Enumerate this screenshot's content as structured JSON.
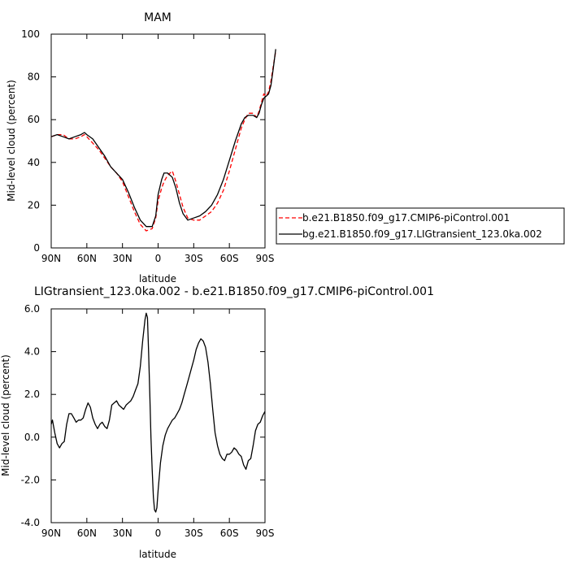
{
  "chart_data": [
    {
      "type": "line",
      "title": "MAM",
      "xlabel": "latitude",
      "ylabel": "Mid-level cloud (percent)",
      "xlim": [
        90,
        -90
      ],
      "ylim": [
        0,
        100
      ],
      "xticks": [
        90,
        60,
        30,
        0,
        -30,
        -60,
        -90
      ],
      "xtick_labels": [
        "90N",
        "60N",
        "30N",
        "0",
        "30S",
        "60S",
        "90S"
      ],
      "yticks": [
        0,
        20,
        40,
        60,
        80,
        100
      ],
      "ytick_labels": [
        "0",
        "20",
        "40",
        "60",
        "80",
        "100"
      ],
      "legend_position": "right",
      "series": [
        {
          "name": "b.e21.B1850.f09_g17.CMIP6-piControl.001",
          "color": "#ff0000",
          "dash": true,
          "points": [
            [
              90,
              52
            ],
            [
              85,
              53
            ],
            [
              80,
              53
            ],
            [
              75,
              51
            ],
            [
              70,
              51
            ],
            [
              65,
              52
            ],
            [
              62,
              53
            ],
            [
              60,
              52
            ],
            [
              55,
              49
            ],
            [
              50,
              46
            ],
            [
              45,
              42
            ],
            [
              40,
              38
            ],
            [
              35,
              35
            ],
            [
              30,
              31
            ],
            [
              25,
              24
            ],
            [
              20,
              17
            ],
            [
              15,
              11
            ],
            [
              10,
              8
            ],
            [
              5,
              9
            ],
            [
              2,
              14
            ],
            [
              0,
              22
            ],
            [
              -3,
              28
            ],
            [
              -5,
              31
            ],
            [
              -8,
              34
            ],
            [
              -12,
              36
            ],
            [
              -15,
              31
            ],
            [
              -18,
              25
            ],
            [
              -21,
              19
            ],
            [
              -25,
              14
            ],
            [
              -30,
              13
            ],
            [
              -35,
              13
            ],
            [
              -40,
              15
            ],
            [
              -45,
              17
            ],
            [
              -50,
              21
            ],
            [
              -55,
              27
            ],
            [
              -60,
              36
            ],
            [
              -65,
              46
            ],
            [
              -70,
              56
            ],
            [
              -73,
              60
            ],
            [
              -76,
              63
            ],
            [
              -80,
              63
            ],
            [
              -83,
              61
            ],
            [
              -85,
              64
            ],
            [
              -87,
              68
            ],
            [
              -89,
              72
            ],
            [
              -91,
              71
            ],
            [
              -93,
              73
            ],
            [
              -95,
              78
            ],
            [
              -97,
              85
            ],
            [
              -99,
              92
            ]
          ]
        },
        {
          "name": "bg.e21.B1850.f09_g17.LIGtransient_123.0ka.002",
          "color": "#000000",
          "dash": false,
          "points": [
            [
              90,
              52
            ],
            [
              85,
              53
            ],
            [
              80,
              52
            ],
            [
              75,
              51
            ],
            [
              70,
              52
            ],
            [
              65,
              53
            ],
            [
              62,
              54
            ],
            [
              60,
              53
            ],
            [
              55,
              51
            ],
            [
              50,
              47
            ],
            [
              45,
              43
            ],
            [
              40,
              38
            ],
            [
              35,
              35
            ],
            [
              30,
              32
            ],
            [
              25,
              26
            ],
            [
              20,
              19
            ],
            [
              15,
              13
            ],
            [
              10,
              10
            ],
            [
              5,
              10
            ],
            [
              2,
              15
            ],
            [
              0,
              25
            ],
            [
              -3,
              32
            ],
            [
              -5,
              35
            ],
            [
              -8,
              35
            ],
            [
              -12,
              33
            ],
            [
              -15,
              28
            ],
            [
              -18,
              21
            ],
            [
              -21,
              16
            ],
            [
              -25,
              13
            ],
            [
              -30,
              14
            ],
            [
              -35,
              15
            ],
            [
              -40,
              17
            ],
            [
              -45,
              20
            ],
            [
              -50,
              25
            ],
            [
              -55,
              32
            ],
            [
              -60,
              41
            ],
            [
              -65,
              50
            ],
            [
              -70,
              58
            ],
            [
              -73,
              61
            ],
            [
              -76,
              62
            ],
            [
              -80,
              62
            ],
            [
              -83,
              61
            ],
            [
              -85,
              63
            ],
            [
              -87,
              67
            ],
            [
              -89,
              70
            ],
            [
              -91,
              71
            ],
            [
              -93,
              72
            ],
            [
              -95,
              76
            ],
            [
              -97,
              84
            ],
            [
              -99,
              93
            ]
          ]
        }
      ]
    },
    {
      "type": "line",
      "title": "LIGtransient_123.0ka.002 - b.e21.B1850.f09_g17.CMIP6-piControl.001",
      "xlabel": "latitude",
      "ylabel": "Mid-level cloud (percent)",
      "xlim": [
        90,
        -90
      ],
      "ylim": [
        -4,
        6
      ],
      "xticks": [
        90,
        60,
        30,
        0,
        -30,
        -60,
        -90
      ],
      "xtick_labels": [
        "90N",
        "60N",
        "30N",
        "0",
        "30S",
        "60S",
        "90S"
      ],
      "yticks": [
        -4,
        -2,
        0,
        2,
        4,
        6
      ],
      "ytick_labels": [
        "-4.0",
        "-2.0",
        "0.0",
        "2.0",
        "4.0",
        "6.0"
      ],
      "series": [
        {
          "color": "#000000",
          "dash": false,
          "points": [
            [
              90,
              0.6
            ],
            [
              89,
              0.8
            ],
            [
              87,
              0.2
            ],
            [
              85,
              -0.3
            ],
            [
              83,
              -0.5
            ],
            [
              81,
              -0.3
            ],
            [
              79,
              -0.2
            ],
            [
              77,
              0.6
            ],
            [
              75,
              1.1
            ],
            [
              73,
              1.1
            ],
            [
              71,
              0.9
            ],
            [
              69,
              0.7
            ],
            [
              67,
              0.8
            ],
            [
              65,
              0.8
            ],
            [
              63,
              0.9
            ],
            [
              61,
              1.3
            ],
            [
              59,
              1.6
            ],
            [
              57,
              1.4
            ],
            [
              55,
              0.9
            ],
            [
              53,
              0.6
            ],
            [
              51,
              0.4
            ],
            [
              49,
              0.6
            ],
            [
              47,
              0.7
            ],
            [
              45,
              0.5
            ],
            [
              43,
              0.4
            ],
            [
              41,
              0.8
            ],
            [
              39,
              1.5
            ],
            [
              37,
              1.6
            ],
            [
              35,
              1.7
            ],
            [
              33,
              1.5
            ],
            [
              31,
              1.4
            ],
            [
              29,
              1.3
            ],
            [
              27,
              1.5
            ],
            [
              25,
              1.6
            ],
            [
              23,
              1.7
            ],
            [
              21,
              1.9
            ],
            [
              19,
              2.2
            ],
            [
              17,
              2.5
            ],
            [
              15,
              3.3
            ],
            [
              13,
              4.5
            ],
            [
              11,
              5.5
            ],
            [
              10,
              5.8
            ],
            [
              9,
              5.6
            ],
            [
              8,
              4
            ],
            [
              7,
              2
            ],
            [
              6,
              0
            ],
            [
              5,
              -1.5
            ],
            [
              4,
              -2.8
            ],
            [
              3,
              -3.4
            ],
            [
              2,
              -3.5
            ],
            [
              1,
              -3.3
            ],
            [
              0,
              -2.5
            ],
            [
              -2,
              -1.2
            ],
            [
              -4,
              -0.4
            ],
            [
              -6,
              0.1
            ],
            [
              -8,
              0.4
            ],
            [
              -10,
              0.6
            ],
            [
              -12,
              0.8
            ],
            [
              -14,
              0.9
            ],
            [
              -16,
              1.1
            ],
            [
              -18,
              1.3
            ],
            [
              -20,
              1.6
            ],
            [
              -22,
              2
            ],
            [
              -24,
              2.4
            ],
            [
              -26,
              2.8
            ],
            [
              -28,
              3.2
            ],
            [
              -30,
              3.6
            ],
            [
              -32,
              4.1
            ],
            [
              -34,
              4.4
            ],
            [
              -36,
              4.6
            ],
            [
              -38,
              4.5
            ],
            [
              -40,
              4.2
            ],
            [
              -42,
              3.5
            ],
            [
              -44,
              2.5
            ],
            [
              -46,
              1.3
            ],
            [
              -48,
              0.2
            ],
            [
              -50,
              -0.4
            ],
            [
              -52,
              -0.8
            ],
            [
              -54,
              -1
            ],
            [
              -56,
              -1.1
            ],
            [
              -58,
              -0.8
            ],
            [
              -60,
              -0.8
            ],
            [
              -62,
              -0.7
            ],
            [
              -64,
              -0.5
            ],
            [
              -66,
              -0.6
            ],
            [
              -68,
              -0.8
            ],
            [
              -70,
              -0.9
            ],
            [
              -72,
              -1.3
            ],
            [
              -74,
              -1.5
            ],
            [
              -76,
              -1.1
            ],
            [
              -78,
              -1
            ],
            [
              -80,
              -0.4
            ],
            [
              -82,
              0.3
            ],
            [
              -84,
              0.6
            ],
            [
              -86,
              0.7
            ],
            [
              -88,
              1
            ],
            [
              -90,
              1.2
            ]
          ]
        }
      ]
    }
  ]
}
